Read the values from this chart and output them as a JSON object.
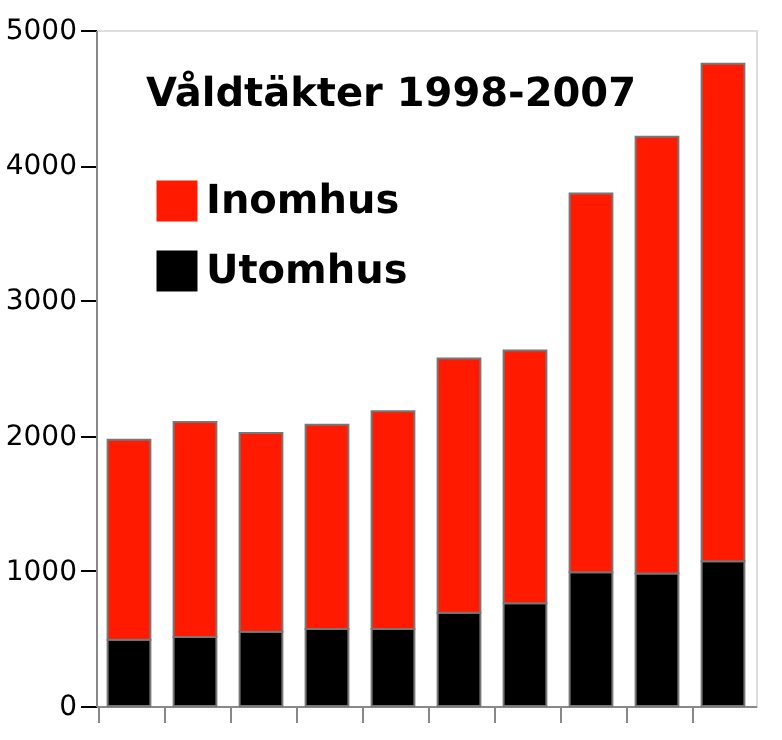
{
  "chart_data": {
    "type": "bar",
    "title": "Våldtäkter 1998-2007",
    "stacked": true,
    "categories": [
      null,
      null,
      null,
      null,
      null,
      null,
      null,
      null,
      null,
      null
    ],
    "series": [
      {
        "name": "Utomhus",
        "color": "#000000",
        "values": [
          490,
          510,
          550,
          570,
          570,
          690,
          760,
          990,
          980,
          1070
        ]
      },
      {
        "name": "Inomhus",
        "color": "#ff1a00",
        "values": [
          1480,
          1590,
          1470,
          1510,
          1610,
          1880,
          1870,
          2800,
          3230,
          3680
        ]
      }
    ],
    "ylim": [
      0,
      5000
    ],
    "yticks": [
      0,
      1000,
      2000,
      3000,
      4000,
      5000
    ],
    "grid": false,
    "legend": "top left",
    "tick_labels": "y"
  }
}
